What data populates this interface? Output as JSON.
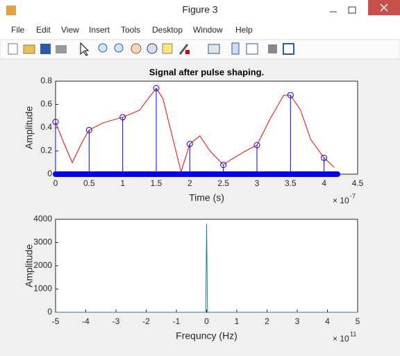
{
  "window": {
    "title": "Figure 3",
    "menu": [
      "File",
      "Edit",
      "View",
      "Insert",
      "Tools",
      "Desktop",
      "Window",
      "Help"
    ]
  },
  "chart_data": [
    {
      "type": "line",
      "title": "Signal after pulse shaping.",
      "x_label": "Time (s)",
      "y_label": "Amplitude",
      "x_scale": {
        "base": "× 10",
        "power": "-7"
      },
      "xlim": [
        0,
        4.5
      ],
      "xticks": [
        0,
        0.5,
        1,
        1.5,
        2,
        2.5,
        3,
        3.5,
        4,
        4.5
      ],
      "ylim": [
        0,
        0.8
      ],
      "yticks": [
        0,
        0.2,
        0.4,
        0.6,
        0.8
      ],
      "grid": false,
      "series": [
        {
          "style": "line",
          "color": "#ff0000",
          "x": [
            0,
            0.1,
            0.25,
            0.4,
            0.5,
            0.7,
            1.0,
            1.25,
            1.5,
            1.6,
            1.75,
            1.87,
            2.0,
            2.15,
            2.3,
            2.5,
            2.6,
            2.8,
            3.0,
            3.2,
            3.4,
            3.5,
            3.65,
            3.8,
            4.0,
            4.15
          ],
          "values": [
            0.45,
            0.3,
            0.1,
            0.28,
            0.38,
            0.44,
            0.49,
            0.55,
            0.74,
            0.65,
            0.3,
            0.02,
            0.26,
            0.33,
            0.2,
            0.08,
            0.12,
            0.19,
            0.25,
            0.48,
            0.68,
            0.68,
            0.55,
            0.3,
            0.14,
            0.06
          ]
        },
        {
          "style": "baseline",
          "color": "#0000ff",
          "x": [
            0,
            4.2
          ],
          "values": [
            0,
            0
          ]
        },
        {
          "style": "stem",
          "color": "#0000ff",
          "x": [
            0,
            0.5,
            1,
            1.5,
            2,
            2.5,
            3,
            3.5,
            4
          ],
          "values": [
            0.45,
            0.38,
            0.49,
            0.74,
            0.26,
            0.08,
            0.25,
            0.68,
            0.14
          ]
        }
      ]
    },
    {
      "type": "line",
      "x_label": "Frequncy (Hz)",
      "y_label": "Amplitude",
      "x_scale": {
        "base": "× 10",
        "power": "11"
      },
      "xlim": [
        -5,
        5
      ],
      "xticks": [
        -5,
        -4,
        -3,
        -2,
        -1,
        0,
        1,
        2,
        3,
        4,
        5
      ],
      "ylim": [
        0,
        4000
      ],
      "yticks": [
        0,
        1000,
        2000,
        3000,
        4000
      ],
      "grid": false,
      "series": [
        {
          "style": "line",
          "color": "#1b7f9b",
          "x": [
            -5,
            -0.03,
            0,
            0.03,
            5
          ],
          "values": [
            0,
            0,
            3800,
            0,
            0
          ]
        }
      ]
    }
  ]
}
